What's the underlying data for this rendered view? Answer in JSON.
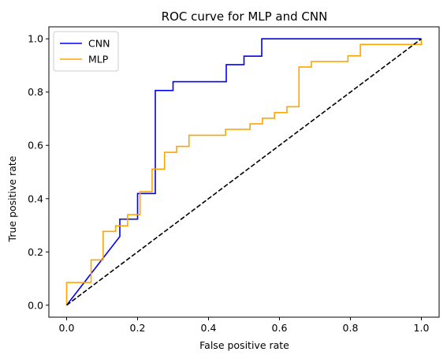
{
  "chart_data": {
    "type": "line",
    "title": "ROC curve for MLP and CNN",
    "xlabel": "False positive rate",
    "ylabel": "True positive rate",
    "xlim": [
      -0.05,
      1.05
    ],
    "ylim": [
      -0.045,
      1.045
    ],
    "xticks": [
      0.0,
      0.2,
      0.4,
      0.6,
      0.8,
      1.0
    ],
    "yticks": [
      0.0,
      0.2,
      0.4,
      0.6,
      0.8,
      1.0
    ],
    "xtick_labels": [
      "0.0",
      "0.2",
      "0.4",
      "0.6",
      "0.8",
      "1.0"
    ],
    "ytick_labels": [
      "0.0",
      "0.2",
      "0.4",
      "0.6",
      "0.8",
      "1.0"
    ],
    "grid": false,
    "legend_position": "top-left",
    "series": [
      {
        "name": "CNN",
        "color": "#0000ff",
        "x": [
          0.0,
          0.15,
          0.15,
          0.2,
          0.2,
          0.25,
          0.25,
          0.3,
          0.3,
          0.45,
          0.45,
          0.5,
          0.5,
          0.55,
          0.55,
          1.0
        ],
        "y": [
          0.0,
          0.258,
          0.323,
          0.323,
          0.419,
          0.419,
          0.806,
          0.806,
          0.839,
          0.839,
          0.903,
          0.903,
          0.935,
          0.935,
          1.0,
          1.0
        ]
      },
      {
        "name": "MLP",
        "color": "#ffa500",
        "x": [
          0.0,
          0.0,
          0.069,
          0.069,
          0.103,
          0.103,
          0.138,
          0.138,
          0.172,
          0.172,
          0.207,
          0.207,
          0.241,
          0.241,
          0.276,
          0.276,
          0.31,
          0.31,
          0.345,
          0.345,
          0.448,
          0.448,
          0.517,
          0.517,
          0.552,
          0.552,
          0.586,
          0.586,
          0.621,
          0.621,
          0.655,
          0.655,
          0.69,
          0.69,
          0.793,
          0.793,
          0.828,
          0.828,
          1.0,
          1.0
        ],
        "y": [
          0.0,
          0.085,
          0.085,
          0.17,
          0.17,
          0.277,
          0.277,
          0.298,
          0.298,
          0.34,
          0.34,
          0.426,
          0.426,
          0.511,
          0.511,
          0.574,
          0.574,
          0.596,
          0.596,
          0.638,
          0.638,
          0.66,
          0.66,
          0.681,
          0.681,
          0.702,
          0.702,
          0.723,
          0.723,
          0.745,
          0.745,
          0.894,
          0.894,
          0.915,
          0.915,
          0.936,
          0.936,
          0.979,
          0.979,
          1.0
        ]
      },
      {
        "name": "",
        "color": "#000000",
        "style": "dashed",
        "x": [
          0.0,
          1.0
        ],
        "y": [
          0.0,
          1.0
        ]
      }
    ]
  }
}
